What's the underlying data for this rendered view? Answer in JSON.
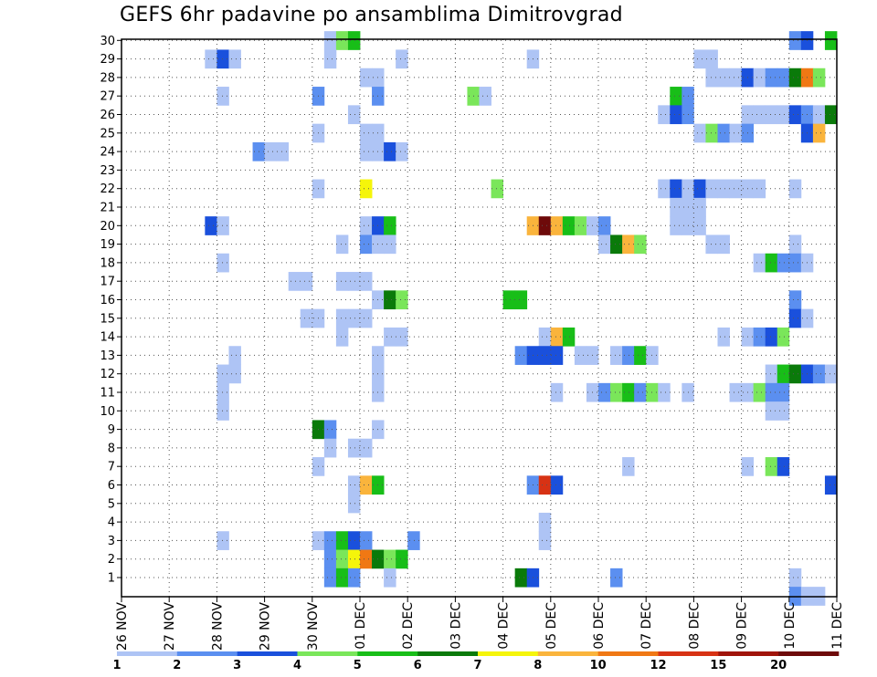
{
  "title": "GEFS 6hr padavine po ansamblima Dimitrovgrad",
  "chart_data": {
    "type": "heatmap",
    "title": "GEFS 6hr padavine po ansamblima Dimitrovgrad",
    "x_unit": "6-hour step",
    "x_range": [
      0,
      60
    ],
    "y_range": [
      1,
      30
    ],
    "grid": true,
    "y_ticks": [
      1,
      2,
      3,
      4,
      5,
      6,
      7,
      8,
      9,
      10,
      11,
      12,
      13,
      14,
      15,
      16,
      17,
      18,
      19,
      20,
      21,
      22,
      23,
      24,
      25,
      26,
      27,
      28,
      29,
      30
    ],
    "x_ticks": [
      {
        "step": 0,
        "label": "26 NOV"
      },
      {
        "step": 4,
        "label": "27 NOV"
      },
      {
        "step": 8,
        "label": "28 NOV"
      },
      {
        "step": 12,
        "label": "29 NOV"
      },
      {
        "step": 16,
        "label": "30 NOV"
      },
      {
        "step": 20,
        "label": "01 DEC"
      },
      {
        "step": 24,
        "label": "02 DEC"
      },
      {
        "step": 28,
        "label": "03 DEC"
      },
      {
        "step": 32,
        "label": "04 DEC"
      },
      {
        "step": 36,
        "label": "05 DEC"
      },
      {
        "step": 40,
        "label": "06 DEC"
      },
      {
        "step": 44,
        "label": "07 DEC"
      },
      {
        "step": 48,
        "label": "08 DEC"
      },
      {
        "step": 52,
        "label": "09 DEC"
      },
      {
        "step": 56,
        "label": "10 DEC"
      },
      {
        "step": 60,
        "label": "11 DEC"
      }
    ],
    "legend": {
      "position": "bottom",
      "labels": [
        "1",
        "2",
        "3",
        "4",
        "5",
        "6",
        "7",
        "8",
        "10",
        "12",
        "15",
        "20"
      ],
      "colors": [
        "#aec4f5",
        "#5b8ff0",
        "#1a50dc",
        "#7ae65a",
        "#18be18",
        "#0a7a0a",
        "#f5f50a",
        "#fab43c",
        "#f07814",
        "#d73214",
        "#a0140a",
        "#6e0a0a"
      ]
    },
    "levels": {
      "0": "#aec4f5",
      "1": "#5b8ff0",
      "2": "#1a50dc",
      "3": "#7ae65a",
      "4": "#18be18",
      "5": "#0a7a0a",
      "6": "#f5f50a",
      "7": "#fab43c",
      "8": "#f07814",
      "9": "#d73214",
      "10": "#a0140a",
      "11": "#6e0a0a"
    },
    "cells": [
      [
        17,
        30,
        0
      ],
      [
        18,
        30,
        3
      ],
      [
        19,
        30,
        4
      ],
      [
        56,
        30,
        1
      ],
      [
        57,
        30,
        2
      ],
      [
        59,
        30,
        4
      ],
      [
        7,
        29,
        0
      ],
      [
        8,
        29,
        2
      ],
      [
        9,
        29,
        0
      ],
      [
        17,
        29,
        0
      ],
      [
        23,
        29,
        0
      ],
      [
        34,
        29,
        0
      ],
      [
        48,
        29,
        0
      ],
      [
        49,
        29,
        0
      ],
      [
        20,
        28,
        0
      ],
      [
        21,
        28,
        0
      ],
      [
        49,
        28,
        0
      ],
      [
        50,
        28,
        0
      ],
      [
        51,
        28,
        0
      ],
      [
        52,
        28,
        2
      ],
      [
        53,
        28,
        0
      ],
      [
        54,
        28,
        1
      ],
      [
        55,
        28,
        1
      ],
      [
        56,
        28,
        5
      ],
      [
        57,
        28,
        8
      ],
      [
        58,
        28,
        3
      ],
      [
        8,
        27,
        0
      ],
      [
        16,
        27,
        1
      ],
      [
        21,
        27,
        1
      ],
      [
        29,
        27,
        3
      ],
      [
        30,
        27,
        0
      ],
      [
        46,
        27,
        4
      ],
      [
        47,
        27,
        1
      ],
      [
        19,
        26,
        0
      ],
      [
        45,
        26,
        0
      ],
      [
        46,
        26,
        2
      ],
      [
        47,
        26,
        1
      ],
      [
        52,
        26,
        0
      ],
      [
        53,
        26,
        0
      ],
      [
        54,
        26,
        0
      ],
      [
        55,
        26,
        0
      ],
      [
        56,
        26,
        2
      ],
      [
        57,
        26,
        1
      ],
      [
        58,
        26,
        0
      ],
      [
        59,
        26,
        5
      ],
      [
        16,
        25,
        0
      ],
      [
        20,
        25,
        0
      ],
      [
        21,
        25,
        0
      ],
      [
        48,
        25,
        0
      ],
      [
        49,
        25,
        3
      ],
      [
        50,
        25,
        1
      ],
      [
        51,
        25,
        0
      ],
      [
        52,
        25,
        1
      ],
      [
        57,
        25,
        2
      ],
      [
        58,
        25,
        7
      ],
      [
        11,
        24,
        1
      ],
      [
        12,
        24,
        0
      ],
      [
        13,
        24,
        0
      ],
      [
        20,
        24,
        0
      ],
      [
        21,
        24,
        0
      ],
      [
        22,
        24,
        2
      ],
      [
        23,
        24,
        0
      ],
      [
        16,
        22,
        0
      ],
      [
        20,
        22,
        6
      ],
      [
        31,
        22,
        3
      ],
      [
        45,
        22,
        0
      ],
      [
        46,
        22,
        2
      ],
      [
        47,
        22,
        0
      ],
      [
        48,
        22,
        2
      ],
      [
        49,
        22,
        0
      ],
      [
        50,
        22,
        0
      ],
      [
        51,
        22,
        0
      ],
      [
        52,
        22,
        0
      ],
      [
        53,
        22,
        0
      ],
      [
        56,
        22,
        0
      ],
      [
        46,
        21,
        0
      ],
      [
        47,
        21,
        0
      ],
      [
        48,
        21,
        0
      ],
      [
        46,
        20,
        0
      ],
      [
        47,
        20,
        0
      ],
      [
        48,
        20,
        0
      ],
      [
        7,
        20,
        2
      ],
      [
        8,
        20,
        0
      ],
      [
        20,
        20,
        0
      ],
      [
        21,
        20,
        2
      ],
      [
        22,
        20,
        4
      ],
      [
        34,
        20,
        7
      ],
      [
        35,
        20,
        11
      ],
      [
        36,
        20,
        7
      ],
      [
        37,
        20,
        4
      ],
      [
        38,
        20,
        3
      ],
      [
        39,
        20,
        0
      ],
      [
        40,
        20,
        1
      ],
      [
        18,
        19,
        0
      ],
      [
        20,
        19,
        1
      ],
      [
        21,
        19,
        0
      ],
      [
        22,
        19,
        0
      ],
      [
        40,
        19,
        0
      ],
      [
        41,
        19,
        5
      ],
      [
        42,
        19,
        7
      ],
      [
        43,
        19,
        3
      ],
      [
        49,
        19,
        0
      ],
      [
        50,
        19,
        0
      ],
      [
        56,
        19,
        0
      ],
      [
        8,
        18,
        0
      ],
      [
        53,
        18,
        0
      ],
      [
        54,
        18,
        4
      ],
      [
        55,
        18,
        1
      ],
      [
        56,
        18,
        1
      ],
      [
        57,
        18,
        0
      ],
      [
        14,
        17,
        0
      ],
      [
        15,
        17,
        0
      ],
      [
        18,
        17,
        0
      ],
      [
        19,
        17,
        0
      ],
      [
        20,
        17,
        0
      ],
      [
        21,
        16,
        0
      ],
      [
        22,
        16,
        5
      ],
      [
        23,
        16,
        3
      ],
      [
        32,
        16,
        4
      ],
      [
        33,
        16,
        4
      ],
      [
        56,
        16,
        1
      ],
      [
        15,
        15,
        0
      ],
      [
        16,
        15,
        0
      ],
      [
        18,
        15,
        0
      ],
      [
        19,
        15,
        0
      ],
      [
        20,
        15,
        0
      ],
      [
        56,
        15,
        2
      ],
      [
        57,
        15,
        0
      ],
      [
        18,
        14,
        0
      ],
      [
        22,
        14,
        0
      ],
      [
        23,
        14,
        0
      ],
      [
        35,
        14,
        0
      ],
      [
        36,
        14,
        7
      ],
      [
        37,
        14,
        4
      ],
      [
        50,
        14,
        0
      ],
      [
        52,
        14,
        0
      ],
      [
        53,
        14,
        1
      ],
      [
        54,
        14,
        2
      ],
      [
        55,
        14,
        3
      ],
      [
        9,
        13,
        0
      ],
      [
        21,
        13,
        0
      ],
      [
        33,
        13,
        1
      ],
      [
        34,
        13,
        2
      ],
      [
        35,
        13,
        2
      ],
      [
        36,
        13,
        2
      ],
      [
        38,
        13,
        0
      ],
      [
        39,
        13,
        0
      ],
      [
        41,
        13,
        0
      ],
      [
        42,
        13,
        1
      ],
      [
        43,
        13,
        4
      ],
      [
        44,
        13,
        0
      ],
      [
        8,
        12,
        0
      ],
      [
        9,
        12,
        0
      ],
      [
        21,
        12,
        0
      ],
      [
        54,
        12,
        0
      ],
      [
        55,
        12,
        4
      ],
      [
        56,
        12,
        5
      ],
      [
        57,
        12,
        2
      ],
      [
        58,
        12,
        1
      ],
      [
        59,
        12,
        0
      ],
      [
        8,
        11,
        0
      ],
      [
        21,
        11,
        0
      ],
      [
        36,
        11,
        0
      ],
      [
        39,
        11,
        0
      ],
      [
        40,
        11,
        1
      ],
      [
        41,
        11,
        3
      ],
      [
        42,
        11,
        4
      ],
      [
        43,
        11,
        1
      ],
      [
        44,
        11,
        3
      ],
      [
        45,
        11,
        0
      ],
      [
        47,
        11,
        0
      ],
      [
        51,
        11,
        0
      ],
      [
        52,
        11,
        0
      ],
      [
        53,
        11,
        3
      ],
      [
        54,
        11,
        1
      ],
      [
        55,
        11,
        1
      ],
      [
        8,
        10,
        0
      ],
      [
        54,
        10,
        0
      ],
      [
        55,
        10,
        0
      ],
      [
        16,
        9,
        5
      ],
      [
        17,
        9,
        1
      ],
      [
        21,
        9,
        0
      ],
      [
        17,
        8,
        0
      ],
      [
        19,
        8,
        0
      ],
      [
        20,
        8,
        0
      ],
      [
        16,
        7,
        0
      ],
      [
        42,
        7,
        0
      ],
      [
        52,
        7,
        0
      ],
      [
        54,
        7,
        3
      ],
      [
        55,
        7,
        2
      ],
      [
        19,
        6,
        0
      ],
      [
        20,
        6,
        7
      ],
      [
        21,
        6,
        4
      ],
      [
        34,
        6,
        1
      ],
      [
        35,
        6,
        9
      ],
      [
        36,
        6,
        2
      ],
      [
        59,
        6,
        2
      ],
      [
        19,
        5,
        0
      ],
      [
        35,
        4,
        0
      ],
      [
        8,
        3,
        0
      ],
      [
        16,
        3,
        0
      ],
      [
        17,
        3,
        1
      ],
      [
        18,
        3,
        4
      ],
      [
        19,
        3,
        2
      ],
      [
        20,
        3,
        1
      ],
      [
        24,
        3,
        1
      ],
      [
        35,
        3,
        0
      ],
      [
        17,
        2,
        1
      ],
      [
        18,
        2,
        3
      ],
      [
        19,
        2,
        6
      ],
      [
        20,
        2,
        8
      ],
      [
        21,
        2,
        5
      ],
      [
        22,
        2,
        3
      ],
      [
        23,
        2,
        4
      ],
      [
        17,
        1,
        1
      ],
      [
        18,
        1,
        4
      ],
      [
        19,
        1,
        1
      ],
      [
        22,
        1,
        0
      ],
      [
        33,
        1,
        5
      ],
      [
        34,
        1,
        2
      ],
      [
        41,
        1,
        1
      ],
      [
        56,
        1,
        0
      ],
      [
        56,
        0,
        1
      ],
      [
        57,
        0,
        0
      ],
      [
        58,
        0,
        0
      ]
    ]
  }
}
